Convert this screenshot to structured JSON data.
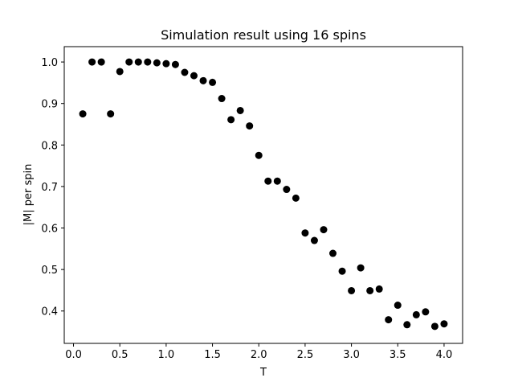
{
  "chart_data": {
    "type": "scatter",
    "title": "Simulation result using 16 spins",
    "xlabel": "T",
    "ylabel": "|M| per spin",
    "xlim": [
      -0.1,
      4.2
    ],
    "ylim": [
      0.322,
      1.037
    ],
    "grid": false,
    "legend": "none",
    "marker_color": "#000000",
    "x_ticks": [
      0.0,
      0.5,
      1.0,
      1.5,
      2.0,
      2.5,
      3.0,
      3.5,
      4.0
    ],
    "x_tick_labels": [
      "0.0",
      "0.5",
      "1.0",
      "1.5",
      "2.0",
      "2.5",
      "3.0",
      "3.5",
      "4.0"
    ],
    "y_ticks": [
      0.4,
      0.5,
      0.6,
      0.7,
      0.8,
      0.9,
      1.0
    ],
    "y_tick_labels": [
      "0.4",
      "0.5",
      "0.6",
      "0.7",
      "0.8",
      "0.9",
      "1.0"
    ],
    "points": [
      {
        "x": 0.1,
        "y": 0.875
      },
      {
        "x": 0.2,
        "y": 1.0
      },
      {
        "x": 0.3,
        "y": 1.0
      },
      {
        "x": 0.4,
        "y": 0.875
      },
      {
        "x": 0.5,
        "y": 0.977
      },
      {
        "x": 0.6,
        "y": 1.0
      },
      {
        "x": 0.7,
        "y": 1.0
      },
      {
        "x": 0.8,
        "y": 1.0
      },
      {
        "x": 0.9,
        "y": 0.998
      },
      {
        "x": 1.0,
        "y": 0.996
      },
      {
        "x": 1.1,
        "y": 0.994
      },
      {
        "x": 1.2,
        "y": 0.975
      },
      {
        "x": 1.3,
        "y": 0.967
      },
      {
        "x": 1.4,
        "y": 0.955
      },
      {
        "x": 1.5,
        "y": 0.951
      },
      {
        "x": 1.6,
        "y": 0.912
      },
      {
        "x": 1.7,
        "y": 0.861
      },
      {
        "x": 1.8,
        "y": 0.883
      },
      {
        "x": 1.9,
        "y": 0.846
      },
      {
        "x": 2.0,
        "y": 0.775
      },
      {
        "x": 2.1,
        "y": 0.713
      },
      {
        "x": 2.2,
        "y": 0.713
      },
      {
        "x": 2.3,
        "y": 0.693
      },
      {
        "x": 2.4,
        "y": 0.672
      },
      {
        "x": 2.5,
        "y": 0.588
      },
      {
        "x": 2.6,
        "y": 0.57
      },
      {
        "x": 2.7,
        "y": 0.596
      },
      {
        "x": 2.8,
        "y": 0.539
      },
      {
        "x": 2.9,
        "y": 0.496
      },
      {
        "x": 3.0,
        "y": 0.449
      },
      {
        "x": 3.1,
        "y": 0.504
      },
      {
        "x": 3.2,
        "y": 0.449
      },
      {
        "x": 3.3,
        "y": 0.453
      },
      {
        "x": 3.4,
        "y": 0.379
      },
      {
        "x": 3.5,
        "y": 0.414
      },
      {
        "x": 3.6,
        "y": 0.367
      },
      {
        "x": 3.7,
        "y": 0.391
      },
      {
        "x": 3.8,
        "y": 0.398
      },
      {
        "x": 3.9,
        "y": 0.363
      },
      {
        "x": 4.0,
        "y": 0.369
      }
    ]
  }
}
